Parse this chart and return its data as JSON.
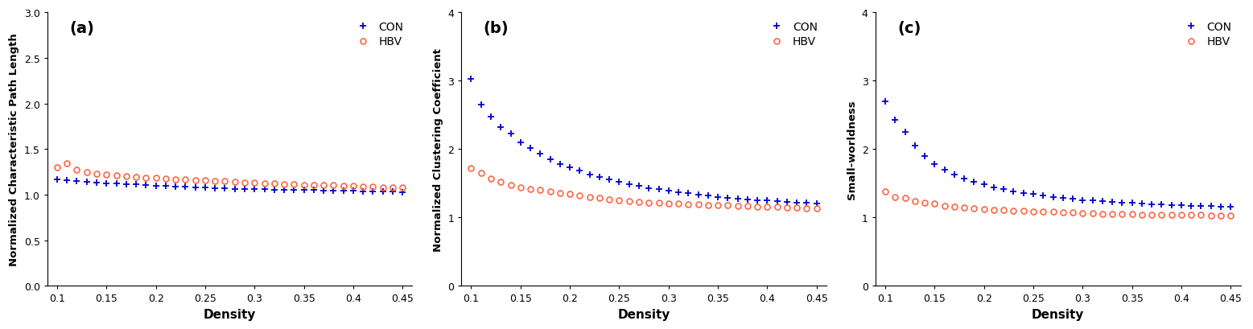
{
  "density": [
    0.1,
    0.11,
    0.12,
    0.13,
    0.14,
    0.15,
    0.16,
    0.17,
    0.18,
    0.19,
    0.2,
    0.21,
    0.22,
    0.23,
    0.24,
    0.25,
    0.26,
    0.27,
    0.28,
    0.29,
    0.3,
    0.31,
    0.32,
    0.33,
    0.34,
    0.35,
    0.36,
    0.37,
    0.38,
    0.39,
    0.4,
    0.41,
    0.42,
    0.43,
    0.44,
    0.45
  ],
  "panel_a": {
    "CON": [
      1.17,
      1.16,
      1.15,
      1.14,
      1.13,
      1.125,
      1.12,
      1.115,
      1.11,
      1.105,
      1.1,
      1.095,
      1.09,
      1.085,
      1.08,
      1.075,
      1.07,
      1.068,
      1.065,
      1.062,
      1.06,
      1.058,
      1.056,
      1.054,
      1.052,
      1.05,
      1.048,
      1.046,
      1.044,
      1.042,
      1.04,
      1.038,
      1.036,
      1.034,
      1.032,
      1.03
    ],
    "HBV": [
      1.3,
      1.34,
      1.27,
      1.25,
      1.23,
      1.22,
      1.21,
      1.2,
      1.19,
      1.185,
      1.18,
      1.175,
      1.17,
      1.165,
      1.16,
      1.155,
      1.15,
      1.145,
      1.14,
      1.135,
      1.13,
      1.125,
      1.12,
      1.115,
      1.11,
      1.108,
      1.106,
      1.104,
      1.102,
      1.1,
      1.095,
      1.09,
      1.085,
      1.082,
      1.08,
      1.075
    ],
    "ylabel": "Normalized Characteristic Path Length",
    "ylim": [
      0,
      3
    ],
    "yticks": [
      0,
      0.5,
      1.0,
      1.5,
      2.0,
      2.5,
      3.0
    ],
    "label": "(a)"
  },
  "panel_b": {
    "CON": [
      3.02,
      2.65,
      2.47,
      2.32,
      2.22,
      2.1,
      2.02,
      1.93,
      1.85,
      1.78,
      1.73,
      1.68,
      1.63,
      1.59,
      1.55,
      1.52,
      1.49,
      1.46,
      1.43,
      1.41,
      1.39,
      1.37,
      1.35,
      1.33,
      1.32,
      1.3,
      1.29,
      1.27,
      1.265,
      1.255,
      1.245,
      1.235,
      1.225,
      1.215,
      1.21,
      1.2
    ],
    "HBV": [
      1.72,
      1.65,
      1.57,
      1.52,
      1.47,
      1.44,
      1.42,
      1.4,
      1.38,
      1.36,
      1.34,
      1.32,
      1.3,
      1.28,
      1.26,
      1.245,
      1.235,
      1.225,
      1.215,
      1.21,
      1.205,
      1.2,
      1.195,
      1.19,
      1.185,
      1.18,
      1.175,
      1.17,
      1.165,
      1.16,
      1.155,
      1.15,
      1.145,
      1.14,
      1.135,
      1.13
    ],
    "ylabel": "Normalized Clustering Coefficient",
    "ylim": [
      0,
      4
    ],
    "yticks": [
      0,
      1,
      2,
      3,
      4
    ],
    "label": "(b)"
  },
  "panel_c": {
    "CON": [
      2.7,
      2.42,
      2.25,
      2.05,
      1.9,
      1.78,
      1.7,
      1.63,
      1.57,
      1.52,
      1.48,
      1.44,
      1.41,
      1.38,
      1.36,
      1.34,
      1.32,
      1.3,
      1.285,
      1.27,
      1.255,
      1.245,
      1.235,
      1.225,
      1.215,
      1.21,
      1.2,
      1.195,
      1.188,
      1.183,
      1.178,
      1.173,
      1.168,
      1.163,
      1.158,
      1.153
    ],
    "HBV": [
      1.38,
      1.3,
      1.28,
      1.24,
      1.22,
      1.2,
      1.17,
      1.155,
      1.14,
      1.13,
      1.12,
      1.11,
      1.105,
      1.1,
      1.095,
      1.09,
      1.085,
      1.08,
      1.075,
      1.07,
      1.065,
      1.06,
      1.055,
      1.05,
      1.048,
      1.046,
      1.044,
      1.042,
      1.04,
      1.038,
      1.036,
      1.034,
      1.033,
      1.032,
      1.031,
      1.03
    ],
    "ylabel": "Small-worldness",
    "ylim": [
      0,
      4
    ],
    "yticks": [
      0,
      1,
      2,
      3,
      4
    ],
    "label": "(c)"
  },
  "con_color": "#0000CC",
  "hbv_color": "#FF6644",
  "xlabel": "Density",
  "xticks": [
    0.1,
    0.15,
    0.2,
    0.25,
    0.3,
    0.35,
    0.4,
    0.45
  ],
  "xtick_labels": [
    "0.1",
    "0.15",
    "0.2",
    "0.25",
    "0.3",
    "0.35",
    "0.4",
    "0.45"
  ],
  "xlim": [
    0.09,
    0.46
  ]
}
